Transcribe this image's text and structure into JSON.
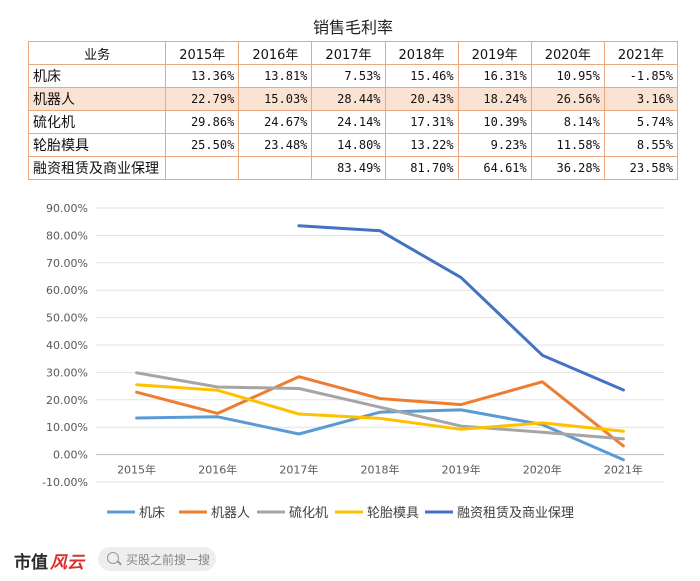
{
  "table": {
    "title": "销售毛利率",
    "header": [
      "业务",
      "2015年",
      "2016年",
      "2017年",
      "2018年",
      "2019年",
      "2020年",
      "2021年"
    ],
    "rows": [
      {
        "label": "机床",
        "values": [
          "13.36%",
          "13.81%",
          "7.53%",
          "15.46%",
          "16.31%",
          "10.95%",
          "-1.85%"
        ]
      },
      {
        "label": "机器人",
        "values": [
          "22.79%",
          "15.03%",
          "28.44%",
          "20.43%",
          "18.24%",
          "26.56%",
          "3.16%"
        ]
      },
      {
        "label": "硫化机",
        "values": [
          "29.86%",
          "24.67%",
          "24.14%",
          "17.31%",
          "10.39%",
          "8.14%",
          "5.74%"
        ]
      },
      {
        "label": "轮胎模具",
        "values": [
          "25.50%",
          "23.48%",
          "14.80%",
          "13.22%",
          "9.23%",
          "11.58%",
          "8.55%"
        ]
      },
      {
        "label": "融资租赁及商业保理",
        "values": [
          "",
          "",
          "83.49%",
          "81.70%",
          "64.61%",
          "36.28%",
          "23.58%"
        ]
      }
    ]
  },
  "chart_data": {
    "type": "line",
    "title": "销售毛利率",
    "categories": [
      "2015年",
      "2016年",
      "2017年",
      "2018年",
      "2019年",
      "2020年",
      "2021年"
    ],
    "ylim": [
      -10,
      90
    ],
    "ytick_step": 10,
    "ytick_labels": [
      "-10.00%",
      "0.00%",
      "10.00%",
      "20.00%",
      "30.00%",
      "40.00%",
      "50.00%",
      "60.00%",
      "70.00%",
      "80.00%",
      "90.00%"
    ],
    "grid": true,
    "legend_position": "bottom",
    "series": [
      {
        "name": "机床",
        "color": "#5b9bd5",
        "values": [
          13.36,
          13.81,
          7.53,
          15.46,
          16.31,
          10.95,
          -1.85
        ]
      },
      {
        "name": "机器人",
        "color": "#ed7d31",
        "values": [
          22.79,
          15.03,
          28.44,
          20.43,
          18.24,
          26.56,
          3.16
        ]
      },
      {
        "name": "硫化机",
        "color": "#a5a5a5",
        "values": [
          29.86,
          24.67,
          24.14,
          17.31,
          10.39,
          8.14,
          5.74
        ]
      },
      {
        "name": "轮胎模具",
        "color": "#ffc000",
        "values": [
          25.5,
          23.48,
          14.8,
          13.22,
          9.23,
          11.58,
          8.55
        ]
      },
      {
        "name": "融资租赁及商业保理",
        "color": "#4472c4",
        "values": [
          null,
          null,
          83.49,
          81.7,
          64.61,
          36.28,
          23.58
        ]
      }
    ]
  },
  "footer": {
    "brand_text": "市值",
    "brand_mark": "风云",
    "search_placeholder": "买股之前搜一搜"
  }
}
